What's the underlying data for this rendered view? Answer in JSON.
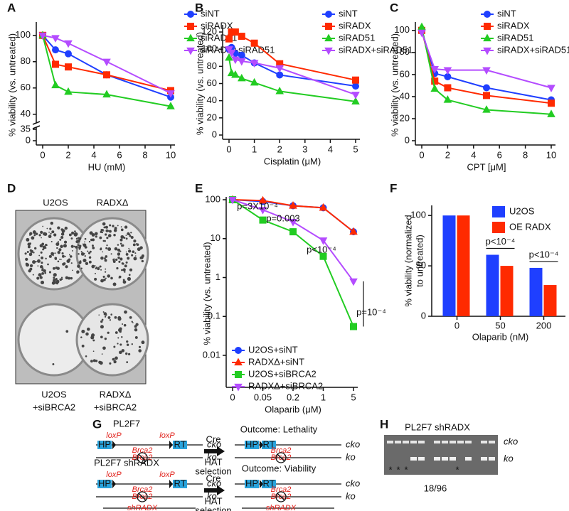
{
  "chart_data": [
    {
      "label": "A",
      "type": "line",
      "xlabel": "HU (mM)",
      "ylabel": "% viability (vs. untreated)",
      "x": [
        0,
        1,
        2,
        5,
        10
      ],
      "xlim": [
        0,
        10
      ],
      "xticks": [
        0,
        2,
        4,
        6,
        8,
        10
      ],
      "ylim": [
        0,
        108
      ],
      "yticks": [
        0,
        35,
        40,
        60,
        80,
        100
      ],
      "y_axis_break": 35,
      "legend": "upper right",
      "series": [
        {
          "name": "siNT",
          "color": "#1f3fff",
          "marker": "circle",
          "values": [
            100,
            89,
            86,
            70,
            53
          ]
        },
        {
          "name": "siRADX",
          "color": "#ff2a00",
          "marker": "square",
          "values": [
            100,
            78,
            76,
            70,
            58
          ]
        },
        {
          "name": "siRAD51",
          "color": "#22cc22",
          "marker": "triangle",
          "values": [
            100,
            62,
            57,
            55,
            46
          ]
        },
        {
          "name": "siRADX+siRAD51",
          "color": "#b44cff",
          "marker": "triangle-down",
          "values": [
            100,
            98,
            94,
            80,
            56
          ]
        }
      ]
    },
    {
      "label": "B",
      "type": "line",
      "xlabel": "Cisplatin (μM)",
      "ylabel": "% viability (vs. untreated)",
      "x": [
        0,
        0.1,
        0.25,
        0.5,
        1,
        2,
        5
      ],
      "xlim": [
        0,
        5
      ],
      "xticks": [
        0,
        1,
        2,
        3,
        4,
        5
      ],
      "ylim": [
        0,
        125
      ],
      "yticks": [
        0,
        20,
        40,
        60,
        80,
        100,
        120
      ],
      "legend": "upper right",
      "series": [
        {
          "name": "siNT",
          "color": "#1f3fff",
          "marker": "circle",
          "values": [
            100,
            102,
            95,
            93,
            84,
            70,
            57
          ]
        },
        {
          "name": "siRADX",
          "color": "#ff2a00",
          "marker": "square",
          "values": [
            112,
            120,
            120,
            115,
            107,
            83,
            64
          ]
        },
        {
          "name": "siRAD51",
          "color": "#22cc22",
          "marker": "triangle",
          "values": [
            90,
            72,
            70,
            66,
            61,
            51,
            39
          ]
        },
        {
          "name": "siRADX+siRAD51",
          "color": "#b44cff",
          "marker": "triangle-down",
          "values": [
            100,
            96,
            88,
            86,
            84,
            78,
            47
          ]
        }
      ]
    },
    {
      "label": "C",
      "type": "line",
      "xlabel": "CPT [μM]",
      "ylabel": "% viability (vs. untreated)",
      "x": [
        0,
        1,
        2,
        5,
        10
      ],
      "xlim": [
        0,
        10
      ],
      "xticks": [
        0,
        2,
        4,
        6,
        8,
        10
      ],
      "ylim": [
        0,
        105
      ],
      "yticks": [
        0,
        20,
        40,
        60,
        80,
        100
      ],
      "legend": "upper right",
      "series": [
        {
          "name": "siNT",
          "color": "#1f3fff",
          "marker": "circle",
          "values": [
            100,
            61,
            58,
            48,
            37
          ]
        },
        {
          "name": "siRADX",
          "color": "#ff2a00",
          "marker": "square",
          "values": [
            100,
            54,
            48,
            41,
            34
          ]
        },
        {
          "name": "siRAD51",
          "color": "#22cc22",
          "marker": "triangle",
          "values": [
            103,
            47,
            37,
            28,
            24
          ]
        },
        {
          "name": "siRADX+siRAD51",
          "color": "#b44cff",
          "marker": "triangle-down",
          "values": [
            98,
            65,
            64,
            64,
            48
          ]
        }
      ]
    },
    {
      "label": "E",
      "type": "line",
      "xlabel": "Olaparib (μM)",
      "ylabel": "% viability (vs. untreated)",
      "categories": [
        "0",
        "0.05",
        "0.2",
        "1",
        "5"
      ],
      "ylim": [
        0.01,
        100
      ],
      "yticks": [
        0.01,
        0.1,
        1,
        10,
        100
      ],
      "log_y": true,
      "legend": "lower left",
      "annotations": [
        "p=3X10⁻⁴",
        "p=0.003",
        "p<10⁻⁴",
        "p=10⁻⁴"
      ],
      "series": [
        {
          "name": "U2OS+siNT",
          "color": "#1f3fff",
          "marker": "circle",
          "values": [
            100,
            90,
            70,
            62,
            15
          ]
        },
        {
          "name": "RADXΔ+siNT",
          "color": "#ff2a00",
          "marker": "triangle",
          "values": [
            100,
            95,
            70,
            62,
            15
          ]
        },
        {
          "name": "U2OS+siBRCA2",
          "color": "#22cc22",
          "marker": "square",
          "values": [
            100,
            30,
            15,
            3.5,
            0.055
          ]
        },
        {
          "name": "RADXΔ+siBRCA2",
          "color": "#b44cff",
          "marker": "triangle-down",
          "values": [
            100,
            55,
            27,
            9,
            0.8
          ]
        }
      ]
    },
    {
      "label": "F",
      "type": "bar",
      "xlabel": "Olaparib (nM)",
      "ylabel": [
        "% viability (normalized",
        "to untreated)"
      ],
      "categories": [
        "0",
        "50",
        "200"
      ],
      "ylim": [
        0,
        110
      ],
      "yticks": [
        0,
        50,
        100
      ],
      "legend": "upper right",
      "annotations": [
        "p<10⁻⁴",
        "p<10⁻⁴"
      ],
      "series": [
        {
          "name": "U2OS",
          "color": "#1f3fff",
          "values": [
            100,
            61,
            48
          ]
        },
        {
          "name": "OE RADX",
          "color": "#ff2a00",
          "values": [
            100,
            50,
            31
          ]
        }
      ]
    }
  ],
  "panel_d": {
    "label": "D",
    "top_labels": [
      "U2OS",
      "RADXΔ"
    ],
    "bottom_labels": [
      [
        "U2OS",
        "+siBRCA2"
      ],
      [
        "RADXΔ",
        "+siBRCA2"
      ]
    ]
  },
  "panel_g": {
    "label": "G",
    "constructs": [
      {
        "title": "PL2F7",
        "loxp": [
          "loxP",
          "loxP"
        ],
        "boxes": [
          "HP",
          "RT"
        ],
        "gene": "Brca2",
        "alleles": [
          "cko",
          "ko"
        ],
        "arrow": [
          "Cre",
          "HAT",
          "selection"
        ],
        "outcome": "Outcome: Lethality"
      },
      {
        "title": "PL2F7 shRADX",
        "loxp": [
          "loxP",
          "loxP"
        ],
        "boxes": [
          "HP",
          "RT"
        ],
        "gene": "Brca2",
        "alleles": [
          "cko",
          "ko"
        ],
        "shrna": "shRADX",
        "arrow": [
          "Cre",
          "HAT",
          "selection"
        ],
        "outcome": "Outcome: Viability"
      }
    ]
  },
  "panel_h": {
    "label": "H",
    "title": "PL2F7 shRADX",
    "bands": [
      "cko",
      "ko"
    ],
    "marks": [
      "*",
      "*",
      "*",
      "*"
    ],
    "count": "18/96"
  }
}
